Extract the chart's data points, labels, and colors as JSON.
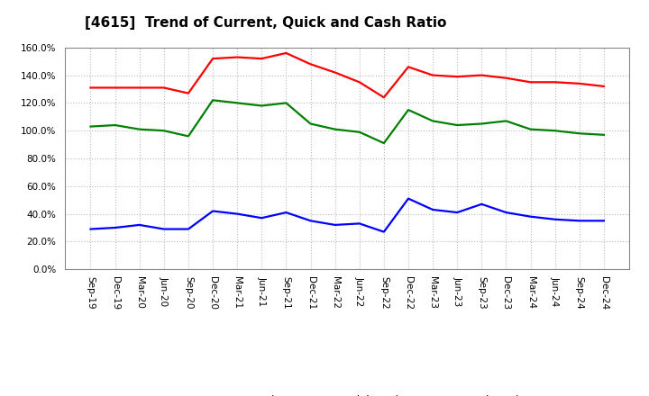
{
  "title": "[4615]  Trend of Current, Quick and Cash Ratio",
  "x_labels": [
    "Sep-19",
    "Dec-19",
    "Mar-20",
    "Jun-20",
    "Sep-20",
    "Dec-20",
    "Mar-21",
    "Jun-21",
    "Sep-21",
    "Dec-21",
    "Mar-22",
    "Jun-22",
    "Sep-22",
    "Dec-22",
    "Mar-23",
    "Jun-23",
    "Sep-23",
    "Dec-23",
    "Mar-24",
    "Jun-24",
    "Sep-24",
    "Dec-24"
  ],
  "current_ratio": [
    131,
    131,
    131,
    131,
    127,
    152,
    153,
    152,
    156,
    148,
    142,
    135,
    124,
    146,
    140,
    139,
    140,
    138,
    135,
    135,
    134,
    132
  ],
  "quick_ratio": [
    103,
    104,
    101,
    100,
    96,
    122,
    120,
    118,
    120,
    105,
    101,
    99,
    91,
    115,
    107,
    104,
    105,
    107,
    101,
    100,
    98,
    97
  ],
  "cash_ratio": [
    29,
    30,
    32,
    29,
    29,
    42,
    40,
    37,
    41,
    35,
    32,
    33,
    27,
    51,
    43,
    41,
    47,
    41,
    38,
    36,
    35,
    35
  ],
  "ylim": [
    0,
    160
  ],
  "yticks": [
    0,
    20,
    40,
    60,
    80,
    100,
    120,
    140,
    160
  ],
  "current_color": "#FF0000",
  "quick_color": "#008000",
  "cash_color": "#0000FF",
  "line_width": 1.6,
  "bg_color": "#FFFFFF",
  "plot_bg_color": "#FFFFFF",
  "grid_color": "#BBBBBB",
  "title_fontsize": 11,
  "legend_fontsize": 9,
  "tick_fontsize": 7.5
}
